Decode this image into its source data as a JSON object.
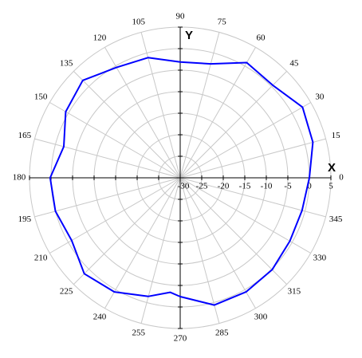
{
  "chart_data": {
    "type": "polar",
    "rlim": [
      -30,
      5
    ],
    "rticks": [
      -30,
      -25,
      -20,
      -15,
      -10,
      -5,
      0,
      5
    ],
    "thetaticks": [
      0,
      15,
      30,
      45,
      60,
      75,
      90,
      105,
      120,
      135,
      150,
      165,
      180,
      195,
      210,
      225,
      240,
      255,
      270,
      285,
      300,
      315,
      330,
      345
    ],
    "x_label": "X",
    "y_label": "Y",
    "grid": true,
    "series": [
      {
        "color": "#0000ff",
        "theta": [
          0,
          15,
          30,
          45,
          60,
          75,
          90,
          105,
          120,
          135,
          150,
          165,
          180,
          195,
          210,
          225,
          240,
          255,
          265,
          270,
          285,
          300,
          315,
          330,
          345
        ],
        "values": [
          0,
          1.9,
          2.8,
          0.4,
          0.9,
          -2.6,
          -3.1,
          -1.1,
          -0.4,
          2,
          0.7,
          -2,
          0.2,
          0,
          -0.9,
          1.5,
          0.6,
          -1.5,
          -3.3,
          -2.4,
          0.6,
          0.6,
          0.2,
          -0.6,
          -0.7
        ]
      }
    ]
  }
}
